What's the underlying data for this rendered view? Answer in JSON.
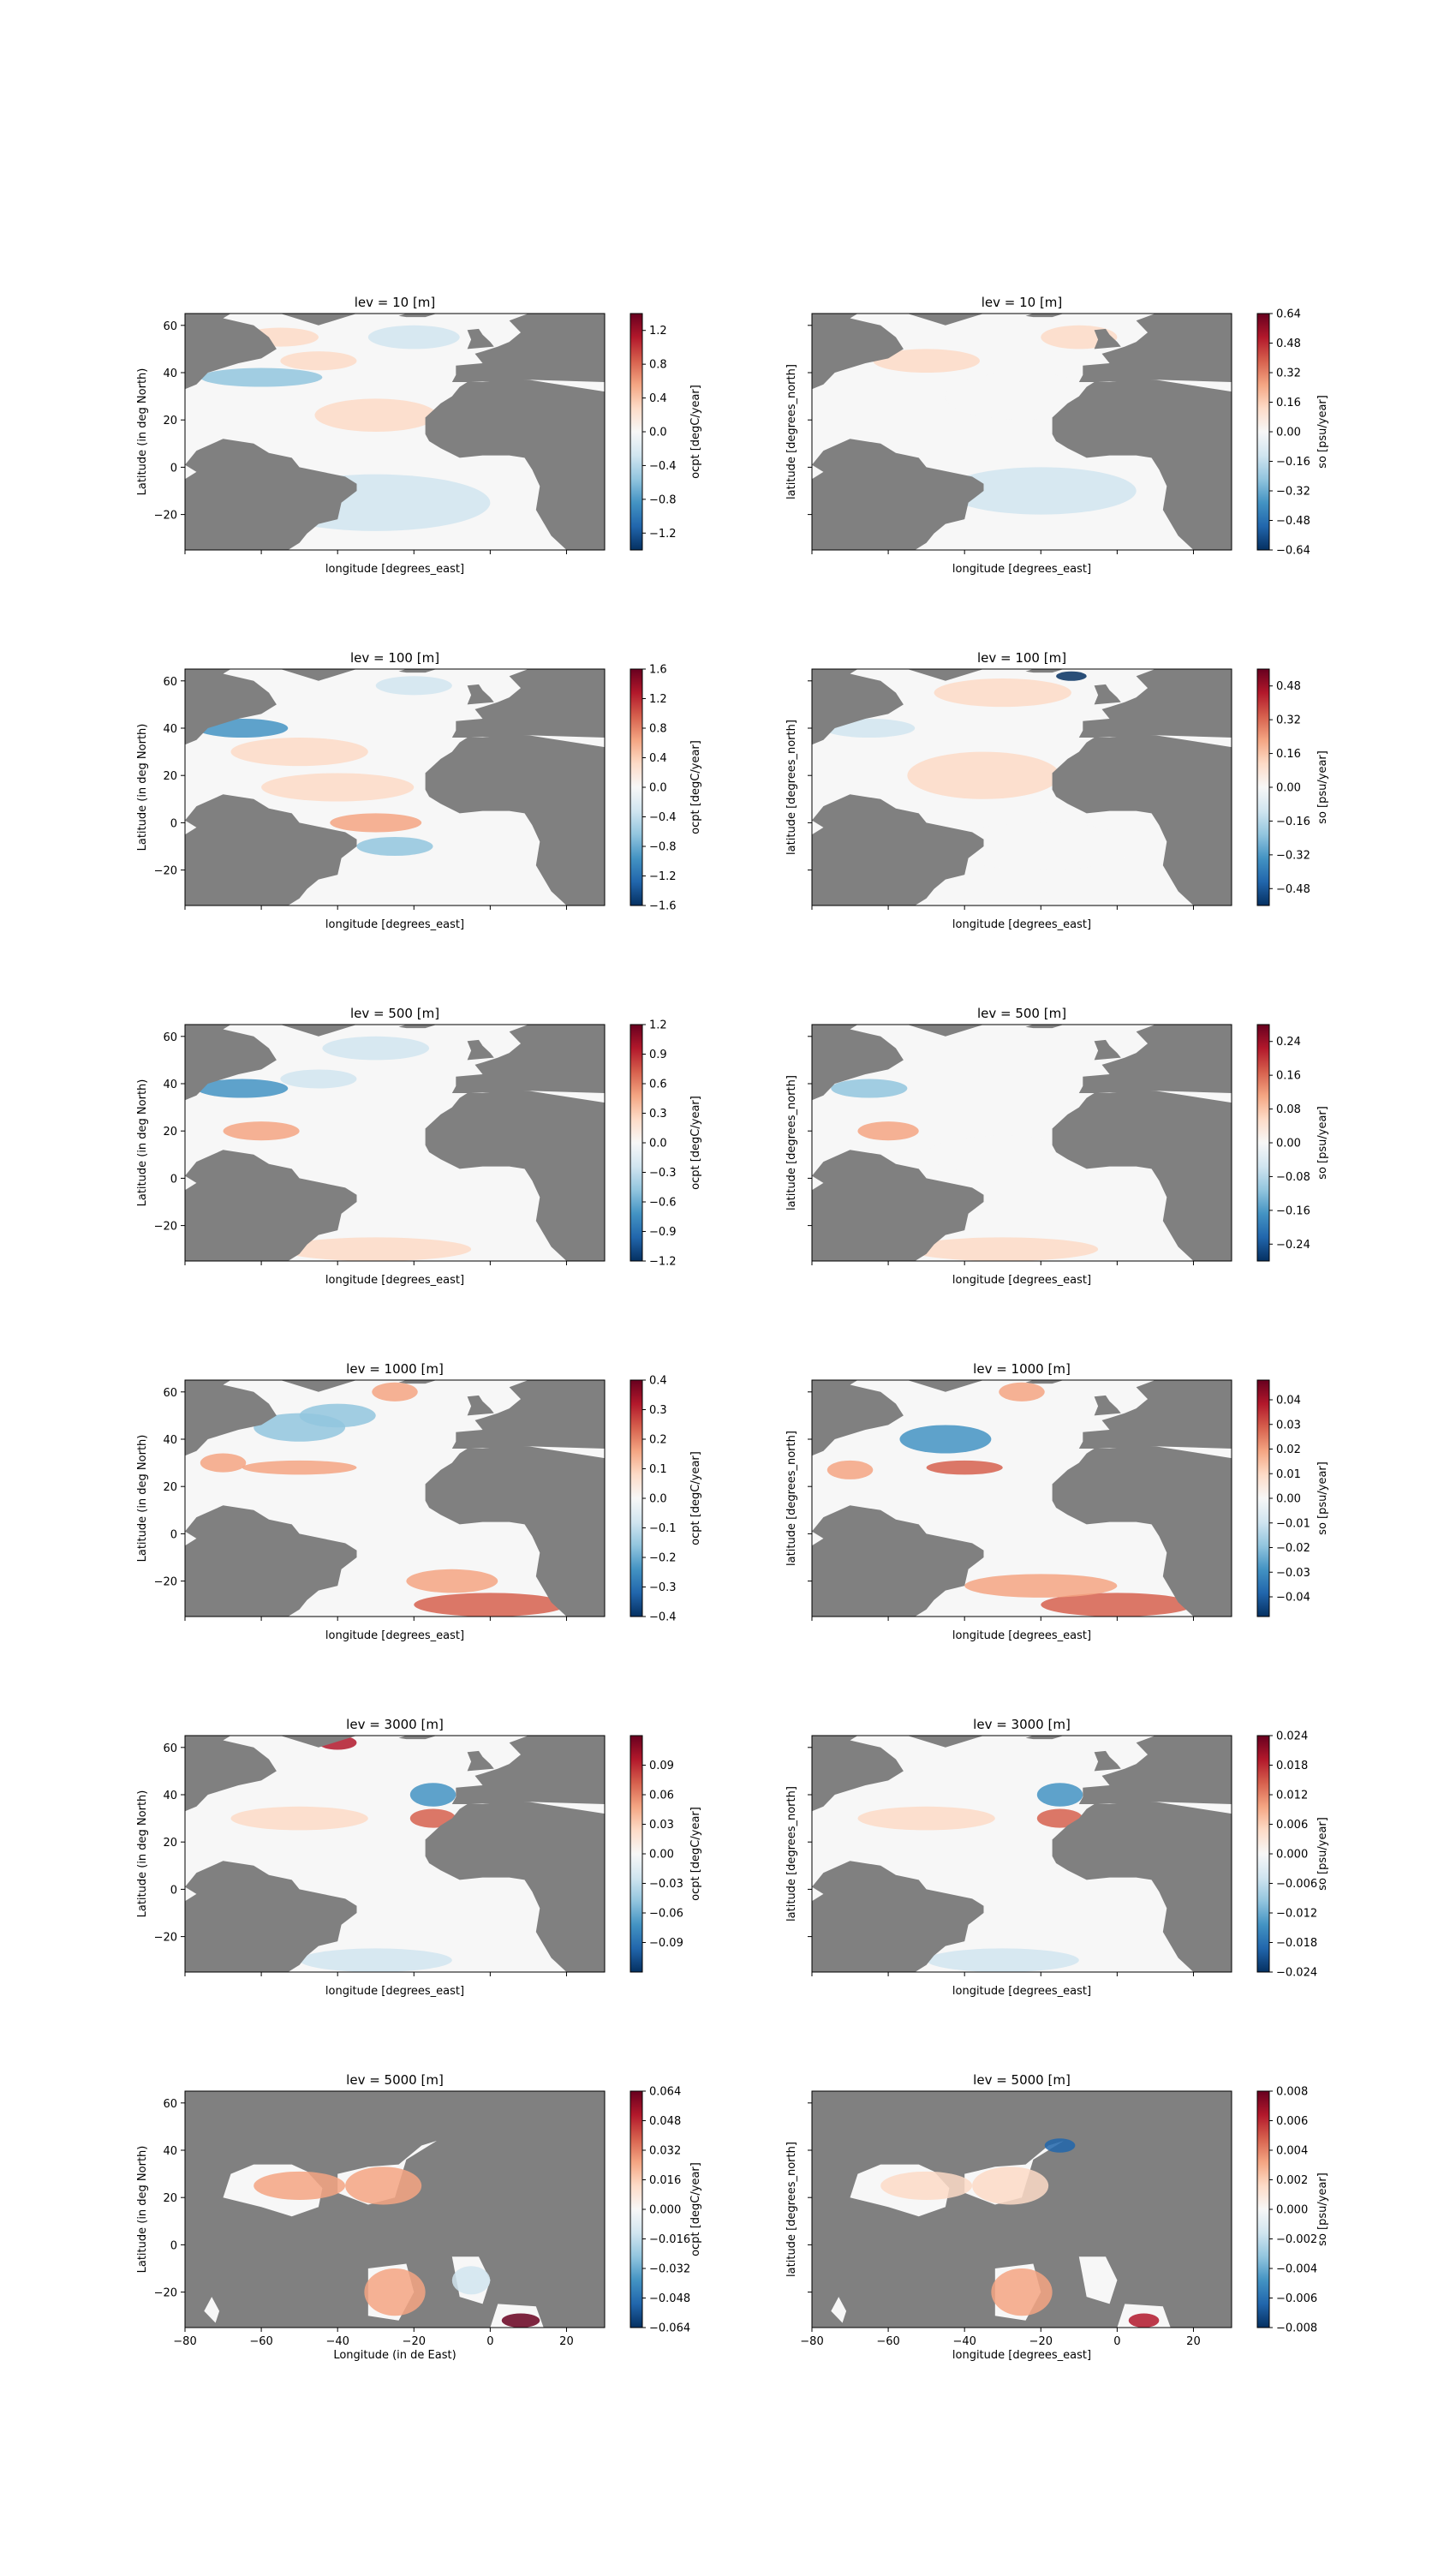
{
  "chart_data": [
    {
      "type": "heatmap",
      "title": "lev = 10 [m]",
      "xlabel": "longitude [degrees_east]",
      "ylabel": "Latitude (in deg North)",
      "colorbar_label": "ocpt [degC/year]",
      "xlim": [
        -80,
        30
      ],
      "ylim": [
        -35,
        65
      ],
      "xticks": [
        -80,
        -60,
        -40,
        -20,
        0,
        20
      ],
      "yticks": [
        -20,
        0,
        20,
        40,
        60
      ],
      "show_xtick_labels": false,
      "show_ytick_labels": true,
      "clim": [
        -1.4,
        1.4
      ],
      "colorbar_ticks": [
        "1.2",
        "0.8",
        "0.4",
        "0.0",
        "−0.4",
        "−0.8",
        "−1.2"
      ]
    },
    {
      "type": "heatmap",
      "title": "lev = 10 [m]",
      "xlabel": "longitude [degrees_east]",
      "ylabel": "latitude [degrees_north]",
      "colorbar_label": "so [psu/year]",
      "xlim": [
        -80,
        30
      ],
      "ylim": [
        -35,
        65
      ],
      "xticks": [
        -80,
        -60,
        -40,
        -20,
        0,
        20
      ],
      "yticks": [
        -20,
        0,
        20,
        40,
        60
      ],
      "show_xtick_labels": false,
      "show_ytick_labels": false,
      "clim": [
        -0.64,
        0.64
      ],
      "colorbar_ticks": [
        "0.64",
        "0.48",
        "0.32",
        "0.16",
        "0.00",
        "−0.16",
        "−0.32",
        "−0.48",
        "−0.64"
      ]
    },
    {
      "type": "heatmap",
      "title": "lev = 100 [m]",
      "xlabel": "longitude [degrees_east]",
      "ylabel": "Latitude (in deg North)",
      "colorbar_label": "ocpt [degC/year]",
      "xlim": [
        -80,
        30
      ],
      "ylim": [
        -35,
        65
      ],
      "xticks": [
        -80,
        -60,
        -40,
        -20,
        0,
        20
      ],
      "yticks": [
        -20,
        0,
        20,
        40,
        60
      ],
      "show_xtick_labels": false,
      "show_ytick_labels": true,
      "clim": [
        -1.6,
        1.6
      ],
      "colorbar_ticks": [
        "1.6",
        "1.2",
        "0.8",
        "0.4",
        "0.0",
        "−0.4",
        "−0.8",
        "−1.2",
        "−1.6"
      ]
    },
    {
      "type": "heatmap",
      "title": "lev = 100 [m]",
      "xlabel": "longitude [degrees_east]",
      "ylabel": "latitude [degrees_north]",
      "colorbar_label": "so [psu/year]",
      "xlim": [
        -80,
        30
      ],
      "ylim": [
        -35,
        65
      ],
      "xticks": [
        -80,
        -60,
        -40,
        -20,
        0,
        20
      ],
      "yticks": [
        -20,
        0,
        20,
        40,
        60
      ],
      "show_xtick_labels": false,
      "show_ytick_labels": false,
      "clim": [
        -0.56,
        0.56
      ],
      "colorbar_ticks": [
        "0.48",
        "0.32",
        "0.16",
        "0.00",
        "−0.16",
        "−0.32",
        "−0.48"
      ]
    },
    {
      "type": "heatmap",
      "title": "lev = 500 [m]",
      "xlabel": "longitude [degrees_east]",
      "ylabel": "Latitude (in deg North)",
      "colorbar_label": "ocpt [degC/year]",
      "xlim": [
        -80,
        30
      ],
      "ylim": [
        -35,
        65
      ],
      "xticks": [
        -80,
        -60,
        -40,
        -20,
        0,
        20
      ],
      "yticks": [
        -20,
        0,
        20,
        40,
        60
      ],
      "show_xtick_labels": false,
      "show_ytick_labels": true,
      "clim": [
        -1.2,
        1.2
      ],
      "colorbar_ticks": [
        "1.2",
        "0.9",
        "0.6",
        "0.3",
        "0.0",
        "−0.3",
        "−0.6",
        "−0.9",
        "−1.2"
      ]
    },
    {
      "type": "heatmap",
      "title": "lev = 500 [m]",
      "xlabel": "longitude [degrees_east]",
      "ylabel": "latitude [degrees_north]",
      "colorbar_label": "so [psu/year]",
      "xlim": [
        -80,
        30
      ],
      "ylim": [
        -35,
        65
      ],
      "xticks": [
        -80,
        -60,
        -40,
        -20,
        0,
        20
      ],
      "yticks": [
        -20,
        0,
        20,
        40,
        60
      ],
      "show_xtick_labels": false,
      "show_ytick_labels": false,
      "clim": [
        -0.28,
        0.28
      ],
      "colorbar_ticks": [
        "0.24",
        "0.16",
        "0.08",
        "0.00",
        "−0.08",
        "−0.16",
        "−0.24"
      ]
    },
    {
      "type": "heatmap",
      "title": "lev = 1000 [m]",
      "xlabel": "longitude [degrees_east]",
      "ylabel": "Latitude (in deg North)",
      "colorbar_label": "ocpt [degC/year]",
      "xlim": [
        -80,
        30
      ],
      "ylim": [
        -35,
        65
      ],
      "xticks": [
        -80,
        -60,
        -40,
        -20,
        0,
        20
      ],
      "yticks": [
        -20,
        0,
        20,
        40,
        60
      ],
      "show_xtick_labels": false,
      "show_ytick_labels": true,
      "clim": [
        -0.4,
        0.4
      ],
      "colorbar_ticks": [
        "0.4",
        "0.3",
        "0.2",
        "0.1",
        "0.0",
        "−0.1",
        "−0.2",
        "−0.3",
        "−0.4"
      ]
    },
    {
      "type": "heatmap",
      "title": "lev = 1000 [m]",
      "xlabel": "longitude [degrees_east]",
      "ylabel": "latitude [degrees_north]",
      "colorbar_label": "so [psu/year]",
      "xlim": [
        -80,
        30
      ],
      "ylim": [
        -35,
        65
      ],
      "xticks": [
        -80,
        -60,
        -40,
        -20,
        0,
        20
      ],
      "yticks": [
        -20,
        0,
        20,
        40,
        60
      ],
      "show_xtick_labels": false,
      "show_ytick_labels": false,
      "clim": [
        -0.048,
        0.048
      ],
      "colorbar_ticks": [
        "0.04",
        "0.03",
        "0.02",
        "0.01",
        "0.00",
        "−0.01",
        "−0.02",
        "−0.03",
        "−0.04"
      ]
    },
    {
      "type": "heatmap",
      "title": "lev = 3000 [m]",
      "xlabel": "longitude [degrees_east]",
      "ylabel": "Latitude (in deg North)",
      "colorbar_label": "ocpt [degC/year]",
      "xlim": [
        -80,
        30
      ],
      "ylim": [
        -35,
        65
      ],
      "xticks": [
        -80,
        -60,
        -40,
        -20,
        0,
        20
      ],
      "yticks": [
        -20,
        0,
        20,
        40,
        60
      ],
      "show_xtick_labels": false,
      "show_ytick_labels": true,
      "clim": [
        -0.12,
        0.12
      ],
      "colorbar_ticks": [
        "0.09",
        "0.06",
        "0.03",
        "0.00",
        "−0.03",
        "−0.06",
        "−0.09"
      ]
    },
    {
      "type": "heatmap",
      "title": "lev = 3000 [m]",
      "xlabel": "longitude [degrees_east]",
      "ylabel": "latitude [degrees_north]",
      "colorbar_label": "so [psu/year]",
      "xlim": [
        -80,
        30
      ],
      "ylim": [
        -35,
        65
      ],
      "xticks": [
        -80,
        -60,
        -40,
        -20,
        0,
        20
      ],
      "yticks": [
        -20,
        0,
        20,
        40,
        60
      ],
      "show_xtick_labels": false,
      "show_ytick_labels": false,
      "clim": [
        -0.024,
        0.024
      ],
      "colorbar_ticks": [
        "0.024",
        "0.018",
        "0.012",
        "0.006",
        "0.000",
        "−0.006",
        "−0.012",
        "−0.018",
        "−0.024"
      ]
    },
    {
      "type": "heatmap",
      "title": "lev = 5000 [m]",
      "xlabel": "Longitude (in de East)",
      "ylabel": "Latitude (in deg North)",
      "colorbar_label": "ocpt [degC/year]",
      "xlim": [
        -80,
        30
      ],
      "ylim": [
        -35,
        65
      ],
      "xticks": [
        -80,
        -60,
        -40,
        -20,
        0,
        20
      ],
      "yticks": [
        -20,
        0,
        20,
        40,
        60
      ],
      "show_xtick_labels": true,
      "show_ytick_labels": true,
      "clim": [
        -0.064,
        0.064
      ],
      "colorbar_ticks": [
        "0.064",
        "0.048",
        "0.032",
        "0.016",
        "0.000",
        "−0.016",
        "−0.032",
        "−0.048",
        "−0.064"
      ]
    },
    {
      "type": "heatmap",
      "title": "lev = 5000 [m]",
      "xlabel": "longitude [degrees_east]",
      "ylabel": "latitude [degrees_north]",
      "colorbar_label": "so [psu/year]",
      "xlim": [
        -80,
        30
      ],
      "ylim": [
        -35,
        65
      ],
      "xticks": [
        -80,
        -60,
        -40,
        -20,
        0,
        20
      ],
      "yticks": [
        -20,
        0,
        20,
        40,
        60
      ],
      "show_xtick_labels": true,
      "show_ytick_labels": false,
      "clim": [
        -0.008,
        0.008
      ],
      "colorbar_ticks": [
        "0.008",
        "0.006",
        "0.004",
        "0.002",
        "0.000",
        "−0.002",
        "−0.004",
        "−0.006",
        "−0.008"
      ]
    }
  ],
  "colors": {
    "land": "#808080",
    "ocean_neutral": "#f7f7f7",
    "cmap": [
      "#053061",
      "#2166ac",
      "#4393c3",
      "#92c5de",
      "#d1e5f0",
      "#f7f7f7",
      "#fddbc7",
      "#f4a582",
      "#d6604d",
      "#b2182b",
      "#67001f"
    ]
  }
}
